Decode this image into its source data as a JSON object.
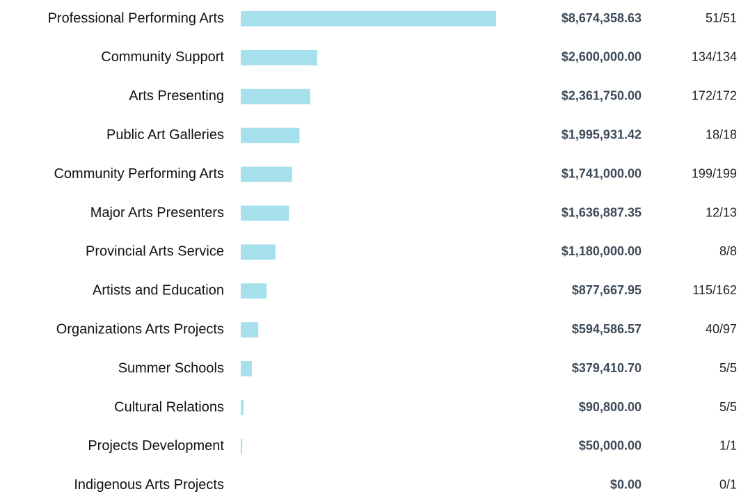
{
  "chart_data": {
    "type": "bar",
    "orientation": "horizontal",
    "color": "#a6e0ec",
    "categories": [
      "Professional Performing Arts",
      "Community Support",
      "Arts Presenting",
      "Public Art Galleries",
      "Community Performing Arts",
      "Major Arts Presenters",
      "Provincial Arts Service",
      "Artists and Education",
      "Organizations Arts Projects",
      "Summer Schools",
      "Cultural Relations",
      "Projects Development",
      "Indigenous Arts Projects"
    ],
    "values": [
      8674358.63,
      2600000,
      2361750,
      1995931.42,
      1741000,
      1636887.35,
      1180000,
      877667.95,
      594586.57,
      379410.7,
      90800,
      50000,
      0
    ],
    "value_labels": [
      "$8,674,358.63",
      "$2,600,000.00",
      "$2,361,750.00",
      "$1,995,931.42",
      "$1,741,000.00",
      "$1,636,887.35",
      "$1,180,000.00",
      "$877,667.95",
      "$594,586.57",
      "$379,410.70",
      "$90,800.00",
      "$50,000.00",
      "$0.00"
    ],
    "counts": [
      "51/51",
      "134/134",
      "172/172",
      "18/18",
      "199/199",
      "12/13",
      "8/8",
      "115/162",
      "40/97",
      "5/5",
      "5/5",
      "1/1",
      "0/1"
    ]
  }
}
